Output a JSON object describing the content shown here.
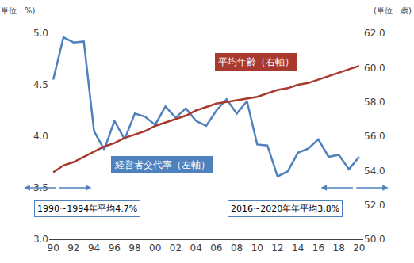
{
  "chart_data": {
    "type": "line",
    "y_label": "(単位：%)",
    "y2_label": "(単位：歳)",
    "categories": [
      "90",
      null,
      "92",
      null,
      "94",
      null,
      "96",
      null,
      "98",
      null,
      "00",
      null,
      "02",
      null,
      "04",
      null,
      "06",
      null,
      "08",
      null,
      "10",
      null,
      "12",
      null,
      "14",
      null,
      "16",
      null,
      "18",
      null,
      "20"
    ],
    "series": [
      {
        "name": "経営者交代率（左軸）",
        "color": "#4f81bd",
        "axis": "y",
        "values": [
          4.55,
          4.96,
          4.91,
          4.92,
          4.05,
          3.87,
          4.15,
          3.97,
          4.22,
          4.19,
          4.11,
          4.29,
          4.18,
          4.27,
          4.15,
          4.1,
          4.25,
          4.36,
          4.22,
          4.34,
          3.92,
          3.91,
          3.61,
          3.66,
          3.84,
          3.88,
          3.97,
          3.8,
          3.82,
          3.68,
          3.8
        ]
      },
      {
        "name": "平均年齢（右軸）",
        "color": "#a8392f",
        "axis": "y2",
        "values": [
          53.9,
          54.3,
          54.5,
          54.8,
          55.1,
          55.4,
          55.6,
          55.9,
          56.1,
          56.3,
          56.6,
          56.8,
          57.0,
          57.2,
          57.5,
          57.7,
          57.9,
          58.0,
          58.1,
          58.2,
          58.3,
          58.5,
          58.7,
          58.8,
          59.0,
          59.1,
          59.3,
          59.5,
          59.7,
          59.9,
          60.1
        ]
      }
    ],
    "ylim": [
      3,
      5
    ],
    "yticks": [
      {
        "value": 3,
        "label": "3.0"
      },
      3.5,
      {
        "value": 4,
        "label": "4.0"
      },
      4.5,
      {
        "value": 5,
        "label": "5.0"
      }
    ],
    "y2lim": [
      50,
      62
    ],
    "y2ticks": [
      {
        "value": 50,
        "label": "50.0"
      },
      {
        "value": 52,
        "label": "52.0"
      },
      {
        "value": 54,
        "label": "54.0"
      },
      {
        "value": 56,
        "label": "56.0"
      },
      {
        "value": 58,
        "label": "58.0"
      },
      {
        "value": 60,
        "label": "60.0"
      },
      {
        "value": 62,
        "label": "62.0"
      }
    ],
    "grid": false,
    "annotations": [
      "1990~1994年平均4.7%",
      "2016~2020年年平均3.8%"
    ]
  }
}
